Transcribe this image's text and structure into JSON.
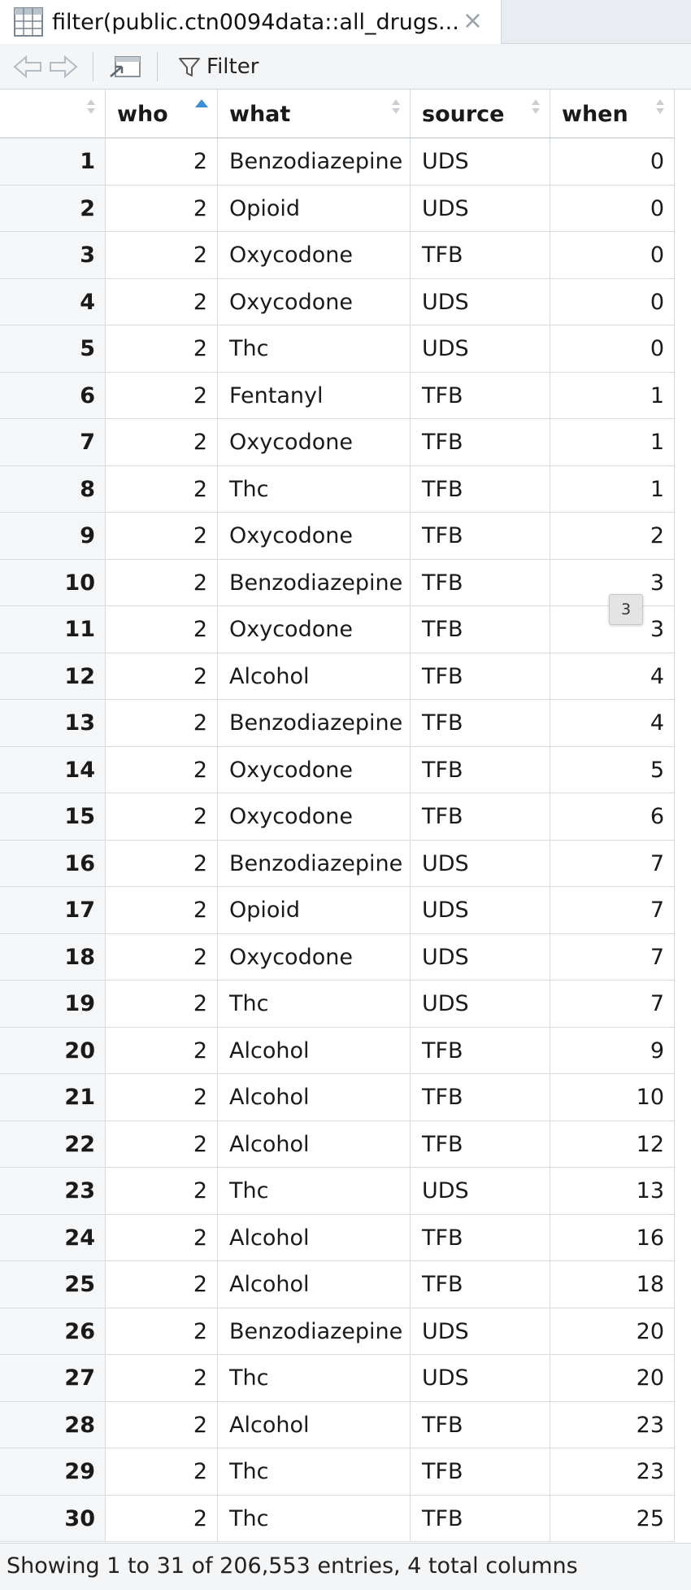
{
  "tab": {
    "title": "filter(public.ctn0094data::all_drugs...",
    "close_glyph": "×",
    "icon": "table-grid-icon"
  },
  "toolbar": {
    "back_icon": "arrow-left-icon",
    "forward_icon": "arrow-right-icon",
    "popout_icon": "popout-window-icon",
    "filter_label": "Filter",
    "filter_icon": "funnel-icon"
  },
  "table": {
    "columns": [
      "",
      "who",
      "what",
      "source",
      "when"
    ],
    "sorted_column": "who",
    "rows": [
      [
        "1",
        "2",
        "Benzodiazepine",
        "UDS",
        "0"
      ],
      [
        "2",
        "2",
        "Opioid",
        "UDS",
        "0"
      ],
      [
        "3",
        "2",
        "Oxycodone",
        "TFB",
        "0"
      ],
      [
        "4",
        "2",
        "Oxycodone",
        "UDS",
        "0"
      ],
      [
        "5",
        "2",
        "Thc",
        "UDS",
        "0"
      ],
      [
        "6",
        "2",
        "Fentanyl",
        "TFB",
        "1"
      ],
      [
        "7",
        "2",
        "Oxycodone",
        "TFB",
        "1"
      ],
      [
        "8",
        "2",
        "Thc",
        "TFB",
        "1"
      ],
      [
        "9",
        "2",
        "Oxycodone",
        "TFB",
        "2"
      ],
      [
        "10",
        "2",
        "Benzodiazepine",
        "TFB",
        "3"
      ],
      [
        "11",
        "2",
        "Oxycodone",
        "TFB",
        "3"
      ],
      [
        "12",
        "2",
        "Alcohol",
        "TFB",
        "4"
      ],
      [
        "13",
        "2",
        "Benzodiazepine",
        "TFB",
        "4"
      ],
      [
        "14",
        "2",
        "Oxycodone",
        "TFB",
        "5"
      ],
      [
        "15",
        "2",
        "Oxycodone",
        "TFB",
        "6"
      ],
      [
        "16",
        "2",
        "Benzodiazepine",
        "UDS",
        "7"
      ],
      [
        "17",
        "2",
        "Opioid",
        "UDS",
        "7"
      ],
      [
        "18",
        "2",
        "Oxycodone",
        "UDS",
        "7"
      ],
      [
        "19",
        "2",
        "Thc",
        "UDS",
        "7"
      ],
      [
        "20",
        "2",
        "Alcohol",
        "TFB",
        "9"
      ],
      [
        "21",
        "2",
        "Alcohol",
        "TFB",
        "10"
      ],
      [
        "22",
        "2",
        "Alcohol",
        "TFB",
        "12"
      ],
      [
        "23",
        "2",
        "Thc",
        "UDS",
        "13"
      ],
      [
        "24",
        "2",
        "Alcohol",
        "TFB",
        "16"
      ],
      [
        "25",
        "2",
        "Alcohol",
        "TFB",
        "18"
      ],
      [
        "26",
        "2",
        "Benzodiazepine",
        "UDS",
        "20"
      ],
      [
        "27",
        "2",
        "Thc",
        "UDS",
        "20"
      ],
      [
        "28",
        "2",
        "Alcohol",
        "TFB",
        "23"
      ],
      [
        "29",
        "2",
        "Thc",
        "TFB",
        "23"
      ],
      [
        "30",
        "2",
        "Thc",
        "TFB",
        "25"
      ]
    ]
  },
  "tooltip": {
    "text": "3"
  },
  "footer": {
    "status": "Showing 1 to 31 of 206,553 entries, 4 total columns"
  },
  "colors": {
    "sort_active": "#3a8fd9",
    "index_bg": "#f4f6f8",
    "border": "#d6dbe0"
  }
}
